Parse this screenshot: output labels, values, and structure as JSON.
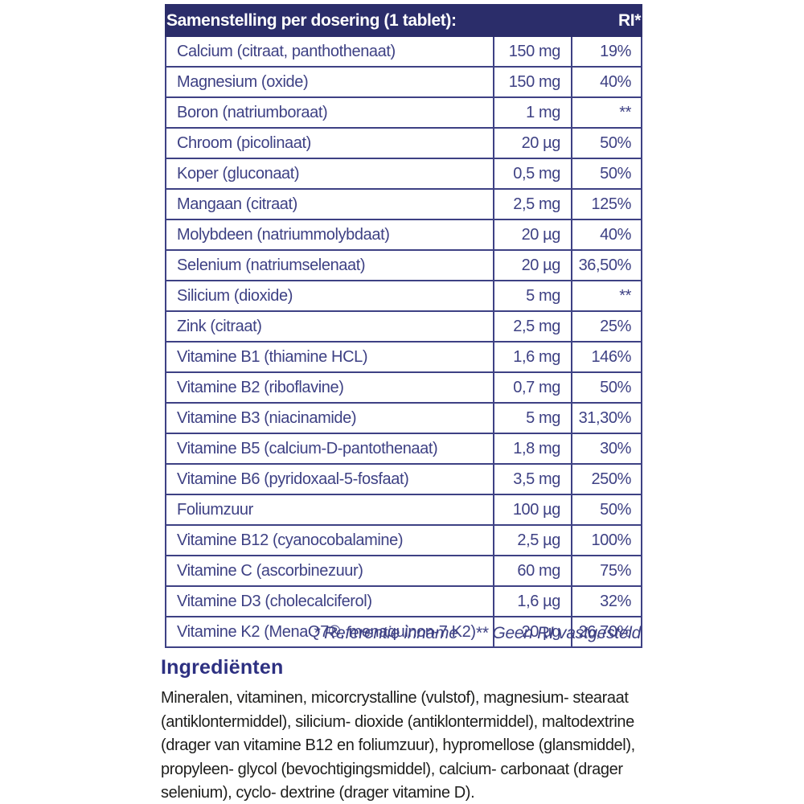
{
  "table": {
    "header": {
      "title": "Samenstelling per dosering (1 tablet):",
      "ri_label": "RI*"
    },
    "rows": [
      {
        "name": "Calcium (citraat, panthothenaat)",
        "amount": "150 mg",
        "ri": "19%"
      },
      {
        "name": "Magnesium (oxide)",
        "amount": "150 mg",
        "ri": "40%"
      },
      {
        "name": "Boron (natriumboraat)",
        "amount": "1 mg",
        "ri": "**"
      },
      {
        "name": "Chroom (picolinaat)",
        "amount": "20 µg",
        "ri": "50%"
      },
      {
        "name": "Koper (gluconaat)",
        "amount": "0,5 mg",
        "ri": "50%"
      },
      {
        "name": "Mangaan (citraat)",
        "amount": "2,5 mg",
        "ri": "125%"
      },
      {
        "name": "Molybdeen (natriummolybdaat)",
        "amount": "20 µg",
        "ri": "40%"
      },
      {
        "name": "Selenium (natriumselenaat)",
        "amount": "20 µg",
        "ri": "36,50%"
      },
      {
        "name": "Silicium (dioxide)",
        "amount": "5 mg",
        "ri": "**"
      },
      {
        "name": "Zink (citraat)",
        "amount": "2,5 mg",
        "ri": "25%"
      },
      {
        "name": "Vitamine B1 (thiamine HCL)",
        "amount": "1,6 mg",
        "ri": "146%"
      },
      {
        "name": "Vitamine B2 (riboflavine)",
        "amount": "0,7 mg",
        "ri": "50%"
      },
      {
        "name": "Vitamine B3 (niacinamide)",
        "amount": "5 mg",
        "ri": "31,30%"
      },
      {
        "name": "Vitamine B5 (calcium-D-pantothenaat)",
        "amount": "1,8 mg",
        "ri": "30%"
      },
      {
        "name": "Vitamine B6 (pyridoxaal-5-fosfaat)",
        "amount": "3,5 mg",
        "ri": "250%"
      },
      {
        "name": "Foliumzuur",
        "amount": "100 µg",
        "ri": "50%"
      },
      {
        "name": "Vitamine B12 (cyanocobalamine)",
        "amount": "2,5 µg",
        "ri": "100%"
      },
      {
        "name": "Vitamine C (ascorbinezuur)",
        "amount": "60 mg",
        "ri": "75%"
      },
      {
        "name": "Vitamine D3 (cholecalciferol)",
        "amount": "1,6 µg",
        "ri": "32%"
      },
      {
        "name": "Vitamine K2 (MenaQ7®, menaquinon-7 K2)",
        "amount": "20 µg",
        "ri": "26,70%"
      }
    ],
    "footnote_ref": "* Referentie inname",
    "footnote_no_ri": "** Geen RI vastgesteld"
  },
  "ingredients": {
    "heading": "Ingrediënten",
    "body": "Mineralen, vitaminen, micorcrystalline (vulstof), magnesium- stearaat (antiklontermiddel), silicium- dioxide (antiklontermiddel), maltodextrine (drager van vitamine B12 en foliumzuur), hypromellose (glansmiddel), propyleen- glycol (bevochtigingsmiddel), calcium- carbonaat (drager selenium), cyclo- dextrine (drager vitamine D)."
  },
  "colors": {
    "header_bg": "#2b2d6a",
    "table_ink": "#3e4184",
    "heading_ink": "#2d3081",
    "body_ink": "#1e1e1c"
  }
}
